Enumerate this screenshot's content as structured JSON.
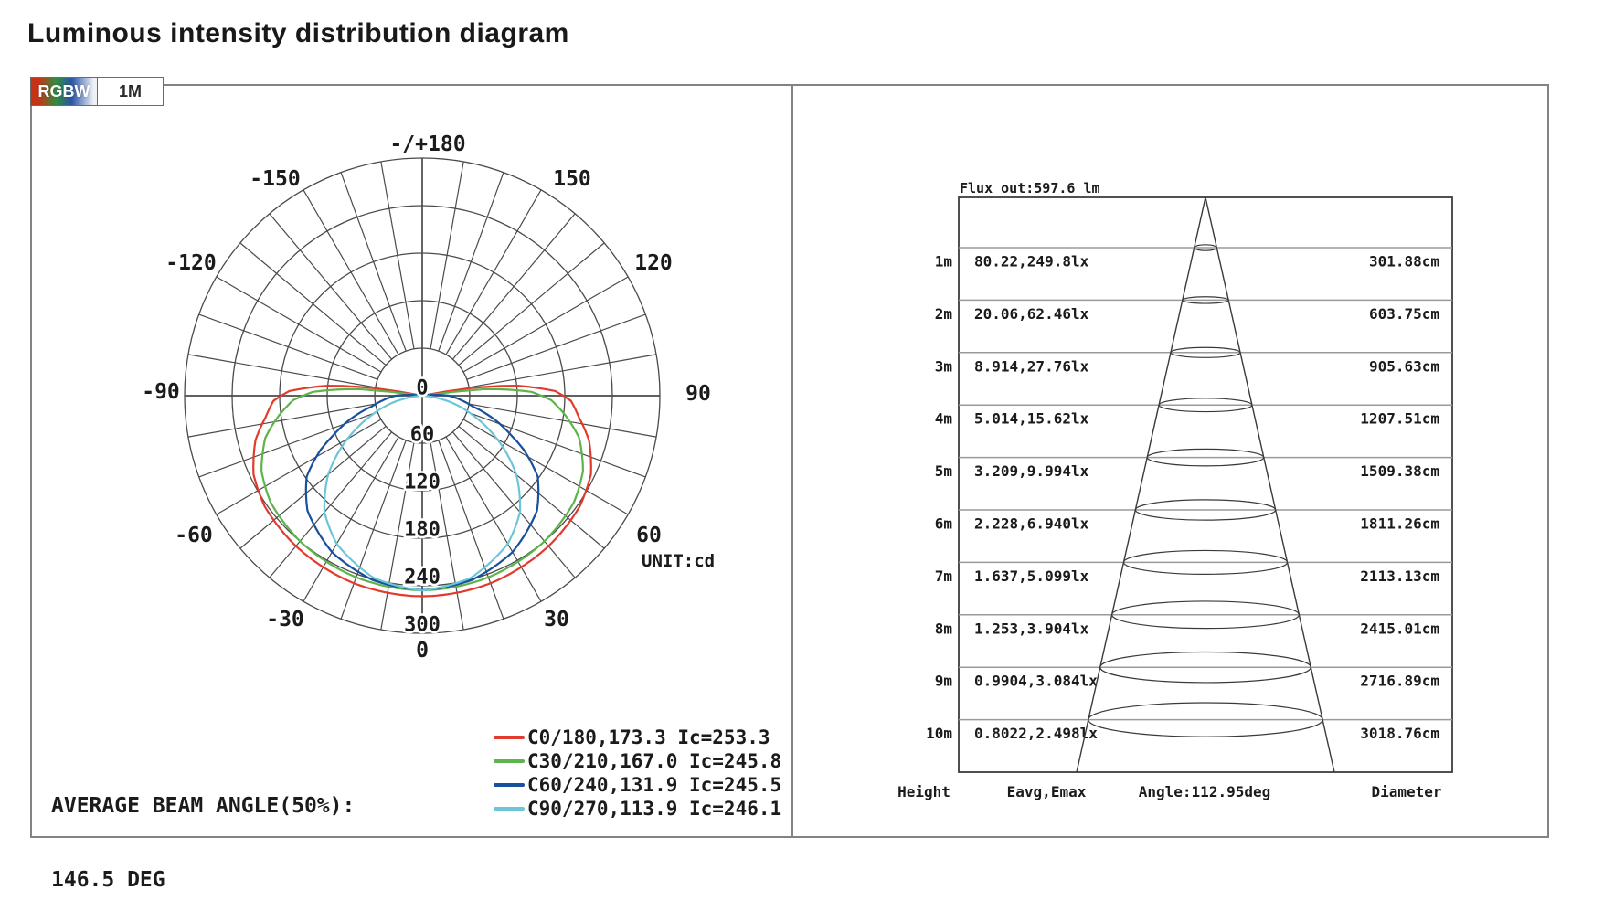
{
  "title": "Luminous intensity distribution diagram",
  "tabs": [
    {
      "label": "RGBW"
    },
    {
      "label": "1M"
    }
  ],
  "colors": {
    "frame": "#838383",
    "grid": "#4a4a4a",
    "text": "#1b1b1b",
    "rgbw_gradient": [
      "#c63418",
      "#2f8f3e",
      "#2b55a7",
      "#eef1f5"
    ]
  },
  "chart_data": [
    {
      "type": "line",
      "subtype": "polar-luminous-intensity",
      "unit_label": "UNIT:cd",
      "r_max": 300,
      "radial_tick_labels": [
        "0",
        "60",
        "120",
        "180",
        "240",
        "300"
      ],
      "angle_labels": [
        "0",
        "30",
        "-30",
        "60",
        "-60",
        "90",
        "-90",
        "120",
        "-120",
        "150",
        "-150",
        "-/+180"
      ],
      "angle_step_deg": 10,
      "series": [
        {
          "name": "C0/180",
          "legend": "C0/180,173.3 Ic=253.3",
          "beam_angle_deg": 173.3,
          "center_intensity_cd": 253.3,
          "color": "#e23a2c",
          "profile_deg_cd": [
            [
              0,
              253.3
            ],
            [
              20,
              252
            ],
            [
              40,
              248
            ],
            [
              55,
              243
            ],
            [
              65,
              235
            ],
            [
              75,
              218
            ],
            [
              82,
              200
            ],
            [
              88,
              188
            ],
            [
              92,
              168
            ],
            [
              96,
              120
            ],
            [
              99,
              60
            ],
            [
              101,
              0
            ]
          ]
        },
        {
          "name": "C30/210",
          "legend": "C30/210,167.0 Ic=245.8",
          "beam_angle_deg": 167.0,
          "center_intensity_cd": 245.8,
          "color": "#5cb44a",
          "profile_deg_cd": [
            [
              0,
              245.8
            ],
            [
              20,
              244
            ],
            [
              40,
              240
            ],
            [
              55,
              234
            ],
            [
              65,
              224
            ],
            [
              75,
              205
            ],
            [
              82,
              183
            ],
            [
              88,
              163
            ],
            [
              92,
              138
            ],
            [
              96,
              80
            ],
            [
              98,
              0
            ]
          ]
        },
        {
          "name": "C60/240",
          "legend": "C60/240,131.9 Ic=245.5",
          "beam_angle_deg": 131.9,
          "center_intensity_cd": 245.5,
          "color": "#17509d",
          "profile_deg_cd": [
            [
              0,
              245.5
            ],
            [
              15,
              241
            ],
            [
              30,
              228
            ],
            [
              45,
              205
            ],
            [
              55,
              178
            ],
            [
              62,
              145
            ],
            [
              66,
              123
            ],
            [
              72,
              95
            ],
            [
              78,
              65
            ],
            [
              84,
              48
            ],
            [
              90,
              34
            ],
            [
              94,
              15
            ],
            [
              96,
              0
            ]
          ]
        },
        {
          "name": "C90/270",
          "legend": "C90/270,113.9 Ic=246.1",
          "beam_angle_deg": 113.9,
          "center_intensity_cd": 246.1,
          "color": "#6cc6d8",
          "profile_deg_cd": [
            [
              0,
              246.1
            ],
            [
              15,
              238
            ],
            [
              30,
              216
            ],
            [
              40,
              192
            ],
            [
              50,
              155
            ],
            [
              57,
              123
            ],
            [
              63,
              95
            ],
            [
              69,
              68
            ],
            [
              75,
              45
            ],
            [
              80,
              25
            ],
            [
              84,
              10
            ],
            [
              86,
              0
            ]
          ]
        }
      ],
      "footer_label": "AVERAGE BEAM ANGLE(50%):",
      "footer_value": "146.5 DEG"
    },
    {
      "type": "table",
      "subtype": "cone-diagram",
      "flux_label": "Flux out:597.6 lm",
      "angle_label": "Angle:112.95deg",
      "columns": [
        "Height",
        "Eavg,Emax",
        "Diameter"
      ],
      "rows": [
        {
          "height": "1m",
          "eavg_emax": "80.22,249.8lx",
          "diameter": "301.88cm"
        },
        {
          "height": "2m",
          "eavg_emax": "20.06,62.46lx",
          "diameter": "603.75cm"
        },
        {
          "height": "3m",
          "eavg_emax": "8.914,27.76lx",
          "diameter": "905.63cm"
        },
        {
          "height": "4m",
          "eavg_emax": "5.014,15.62lx",
          "diameter": "1207.51cm"
        },
        {
          "height": "5m",
          "eavg_emax": "3.209,9.994lx",
          "diameter": "1509.38cm"
        },
        {
          "height": "6m",
          "eavg_emax": "2.228,6.940lx",
          "diameter": "1811.26cm"
        },
        {
          "height": "7m",
          "eavg_emax": "1.637,5.099lx",
          "diameter": "2113.13cm"
        },
        {
          "height": "8m",
          "eavg_emax": "1.253,3.904lx",
          "diameter": "2415.01cm"
        },
        {
          "height": "9m",
          "eavg_emax": "0.9904,3.084lx",
          "diameter": "2716.89cm"
        },
        {
          "height": "10m",
          "eavg_emax": "0.8022,2.498lx",
          "diameter": "3018.76cm"
        }
      ]
    }
  ]
}
